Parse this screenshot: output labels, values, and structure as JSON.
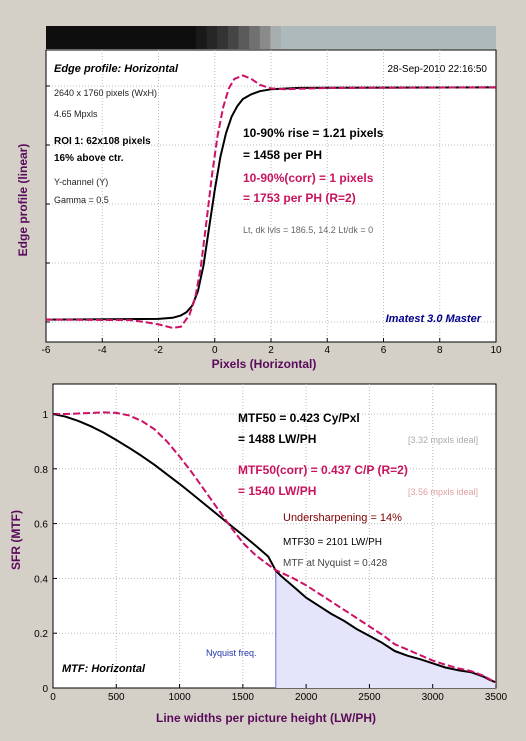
{
  "chart_data": [
    {
      "type": "line",
      "title": "Edge profile: Horizontal",
      "timestamp": "28-Sep-2010 22:16:50",
      "xlabel": "Pixels (Horizontal)",
      "ylabel": "Edge profile (linear)",
      "xlim": [
        -6,
        10
      ],
      "xticks": [
        -6,
        -4,
        -2,
        0,
        2,
        4,
        6,
        8,
        10
      ],
      "grid": true,
      "gradient_strip": [
        "#0e0e0e",
        "#191919",
        "#262626",
        "#333333",
        "#454545",
        "#5a5a5a",
        "#707070",
        "#8a8a8a",
        "#a8aeae",
        "#aeb9bb"
      ],
      "info_lines": [
        "2640 x 1760 pixels (WxH)",
        "4.65 Mpxls",
        "ROI 1:  62x108 pixels",
        "16% above ctr.",
        "Y-channel  (Y)",
        "Gamma = 0.5"
      ],
      "rise_line1": "10-90% rise = 1.21 pixels",
      "rise_line2": "= 1458 per PH",
      "corr_line1": "10-90%(corr) = 1 pixels",
      "corr_line2": "= 1753 per PH  (R=2)",
      "levels_text": "Lt, dk lvls = 186.5, 14.2   Lt/dk = 0",
      "brand": "Imatest 3.0 Master",
      "series": [
        {
          "color": "#000000",
          "dashed": false,
          "x": [
            -6,
            -2,
            -1.5,
            -1.2,
            -1,
            -0.8,
            -0.6,
            -0.4,
            -0.2,
            0,
            0.2,
            0.4,
            0.6,
            0.8,
            1,
            1.3,
            1.6,
            2,
            3,
            4,
            10
          ],
          "y": [
            0.01,
            0.013,
            0.018,
            0.028,
            0.042,
            0.07,
            0.13,
            0.24,
            0.4,
            0.56,
            0.7,
            0.8,
            0.87,
            0.915,
            0.945,
            0.965,
            0.978,
            0.986,
            0.992,
            0.993,
            0.994
          ]
        },
        {
          "color": "#cc1166",
          "dashed": true,
          "x": [
            -6,
            -3,
            -2.5,
            -2,
            -1.5,
            -1.2,
            -0.9,
            -0.7,
            -0.5,
            -0.3,
            -0.1,
            0.1,
            0.3,
            0.5,
            0.7,
            1,
            1.3,
            1.6,
            2,
            2.5,
            3,
            3.5,
            4,
            10
          ],
          "y": [
            0.01,
            0.008,
            0.0,
            -0.01,
            -0.025,
            -0.02,
            0.03,
            0.1,
            0.23,
            0.42,
            0.62,
            0.79,
            0.91,
            0.99,
            1.03,
            1.045,
            1.03,
            1.005,
            0.99,
            0.986,
            0.988,
            0.99,
            0.992,
            0.994
          ]
        }
      ]
    },
    {
      "type": "line",
      "title": "MTF: Horizontal",
      "xlabel": "Line widths per picture height (LW/PH)",
      "ylabel": "SFR (MTF)",
      "xlim": [
        0,
        3500
      ],
      "ylim": [
        0,
        1
      ],
      "xticks": [
        0,
        500,
        1000,
        1500,
        2000,
        2500,
        3000,
        3500
      ],
      "yticks": [
        0,
        0.2,
        0.4,
        0.6,
        0.8,
        1
      ],
      "grid": true,
      "nyquist_x": 1760,
      "nyquist_label": "Nyquist freq.",
      "mtf50_line1": "MTF50 = 0.423 Cy/Pxl",
      "mtf50_line2": "= 1488 LW/PH",
      "mtf50_ideal": "[3.32 mpxls ideal]",
      "mtf50corr_line1": "MTF50(corr) = 0.437 C/P  (R=2)",
      "mtf50corr_line2": "= 1540 LW/PH",
      "mtf50corr_ideal": "[3.56 mpxls ideal]",
      "undersharpening": "Undersharpening = 14%",
      "mtf30": "MTF30 = 2101 LW/PH",
      "mtf_nyquist": "MTF at Nyquist = 0.428",
      "series": [
        {
          "color": "#000000",
          "dashed": false,
          "x": [
            0,
            100,
            200,
            300,
            400,
            500,
            600,
            700,
            800,
            900,
            1000,
            1100,
            1200,
            1300,
            1400,
            1500,
            1600,
            1700,
            1760,
            1800,
            1900,
            2000,
            2100,
            2200,
            2300,
            2400,
            2500,
            2600,
            2700,
            2800,
            2900,
            3000,
            3100,
            3200,
            3300,
            3400,
            3450,
            3500
          ],
          "y": [
            1.0,
            0.99,
            0.975,
            0.955,
            0.932,
            0.905,
            0.877,
            0.847,
            0.815,
            0.78,
            0.745,
            0.708,
            0.67,
            0.633,
            0.595,
            0.558,
            0.52,
            0.48,
            0.428,
            0.41,
            0.37,
            0.33,
            0.3,
            0.27,
            0.245,
            0.215,
            0.19,
            0.165,
            0.135,
            0.118,
            0.105,
            0.09,
            0.075,
            0.065,
            0.058,
            0.042,
            0.03,
            0.02
          ]
        },
        {
          "color": "#cc1166",
          "dashed": true,
          "x": [
            0,
            100,
            200,
            300,
            400,
            500,
            600,
            700,
            800,
            900,
            1000,
            1100,
            1200,
            1300,
            1400,
            1500,
            1600,
            1700,
            1760,
            1800,
            1900,
            2000,
            2100,
            2200,
            2300,
            2400,
            2500,
            2600,
            2700,
            2800,
            2900,
            3000,
            3100,
            3200,
            3300,
            3400,
            3450,
            3500
          ],
          "y": [
            1.0,
            1.0,
            1.002,
            1.004,
            1.006,
            1.004,
            0.995,
            0.975,
            0.945,
            0.9,
            0.845,
            0.785,
            0.72,
            0.655,
            0.59,
            0.53,
            0.485,
            0.45,
            0.43,
            0.422,
            0.4,
            0.375,
            0.345,
            0.315,
            0.285,
            0.255,
            0.225,
            0.195,
            0.16,
            0.14,
            0.12,
            0.1,
            0.085,
            0.072,
            0.062,
            0.045,
            0.032,
            0.02
          ]
        }
      ]
    }
  ]
}
